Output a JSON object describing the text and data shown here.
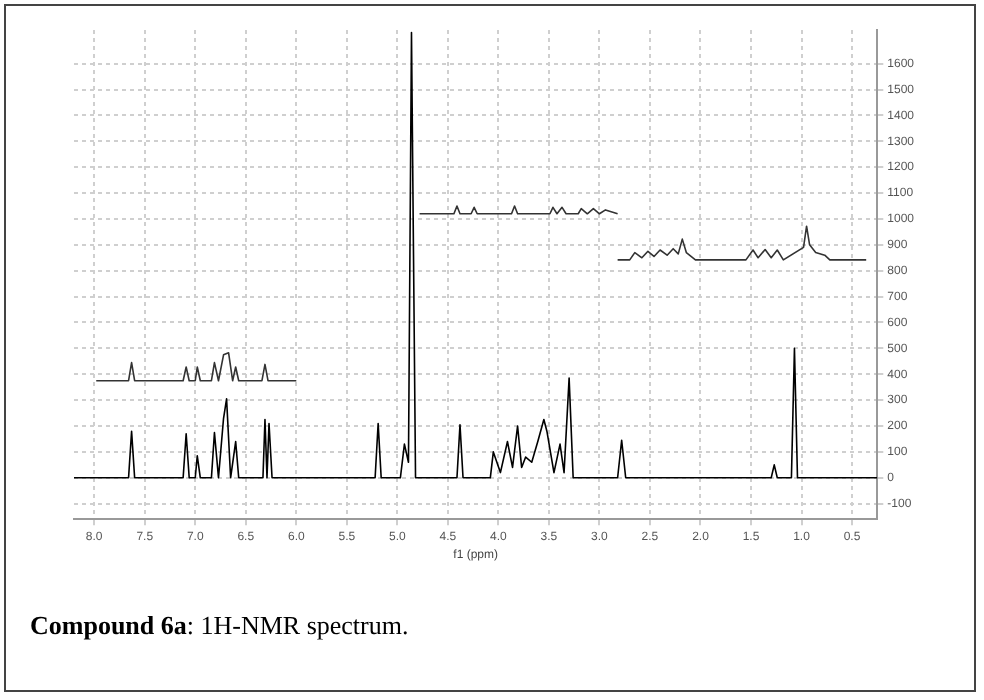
{
  "chart_data": {
    "type": "line",
    "xlabel": "f1 (ppm)",
    "xlim": [
      8.2,
      0.25
    ],
    "ylim": [
      -160,
      1730
    ],
    "xticks": [
      {
        "value": 8,
        "label": "8.0"
      },
      7.5,
      {
        "value": 7,
        "label": "7.0"
      },
      6.5,
      {
        "value": 6,
        "label": "6.0"
      },
      5.5,
      {
        "value": 5,
        "label": "5.0"
      },
      4.5,
      {
        "value": 4,
        "label": "4.0"
      },
      3.5,
      {
        "value": 3,
        "label": "3.0"
      },
      2.5,
      {
        "value": 2,
        "label": "2.0"
      },
      1.5,
      {
        "value": 1,
        "label": "1.0"
      },
      0.5
    ],
    "yticks": [
      -100,
      0,
      100,
      200,
      300,
      400,
      500,
      600,
      700,
      800,
      900,
      1000,
      1100,
      1200,
      1300,
      1400,
      1500,
      1600
    ],
    "grid": true,
    "legend": false,
    "marker": "none",
    "line_style": "solid",
    "series": [
      {
        "color": "#000000",
        "x": [
          8.2,
          7.66,
          7.63,
          7.6,
          7.12,
          7.09,
          7.06,
          7.0,
          6.98,
          6.95,
          6.84,
          6.81,
          6.77,
          6.72,
          6.69,
          6.65,
          6.6,
          6.57,
          6.33,
          6.31,
          6.29,
          6.27,
          6.24,
          5.22,
          5.19,
          5.16,
          4.97,
          4.93,
          4.89,
          4.86,
          4.82,
          4.41,
          4.38,
          4.35,
          4.08,
          4.05,
          3.98,
          3.91,
          3.86,
          3.81,
          3.77,
          3.73,
          3.67,
          3.61,
          3.55,
          3.52,
          3.45,
          3.39,
          3.35,
          3.3,
          3.26,
          2.82,
          2.78,
          2.74,
          1.3,
          1.27,
          1.24,
          1.1,
          1.07,
          1.04,
          0.25
        ],
        "values": [
          0,
          0,
          180,
          0,
          0,
          170,
          0,
          0,
          85,
          0,
          0,
          175,
          0,
          230,
          305,
          0,
          140,
          0,
          0,
          225,
          0,
          210,
          0,
          0,
          210,
          0,
          0,
          130,
          60,
          1720,
          0,
          0,
          205,
          0,
          0,
          100,
          20,
          140,
          40,
          200,
          40,
          80,
          60,
          140,
          225,
          180,
          20,
          130,
          20,
          385,
          0,
          0,
          145,
          0,
          0,
          50,
          0,
          0,
          500,
          0,
          0
        ]
      },
      {
        "color": "#333333",
        "x": [
          7.98,
          7.66,
          7.63,
          7.6,
          7.12,
          7.09,
          7.06,
          7.0,
          6.98,
          6.95,
          6.84,
          6.81,
          6.77,
          6.72,
          6.67,
          6.63,
          6.6,
          6.57,
          6.34,
          6.31,
          6.28,
          6.0
        ],
        "values": [
          375,
          375,
          445,
          375,
          375,
          428,
          375,
          375,
          428,
          375,
          375,
          445,
          375,
          475,
          483,
          375,
          428,
          375,
          375,
          438,
          375,
          375
        ]
      },
      {
        "color": "#333333",
        "x": [
          4.78,
          4.44,
          4.41,
          4.38,
          4.27,
          4.24,
          4.21,
          3.87,
          3.84,
          3.81,
          3.49,
          3.46,
          3.42,
          3.37,
          3.33,
          3.21,
          3.18,
          3.12,
          3.06,
          3.0,
          2.94,
          2.82
        ],
        "values": [
          1020,
          1020,
          1050,
          1020,
          1020,
          1045,
          1020,
          1020,
          1050,
          1020,
          1020,
          1045,
          1020,
          1045,
          1020,
          1020,
          1040,
          1020,
          1040,
          1020,
          1035,
          1020
        ]
      },
      {
        "color": "#333333",
        "x": [
          2.82,
          2.7,
          2.65,
          2.58,
          2.52,
          2.46,
          2.4,
          2.33,
          2.27,
          2.22,
          2.18,
          2.14,
          2.05,
          1.55,
          1.48,
          1.43,
          1.36,
          1.3,
          1.24,
          1.18,
          0.98,
          0.95,
          0.92,
          0.86,
          0.77,
          0.72,
          0.36
        ],
        "values": [
          842,
          842,
          870,
          850,
          875,
          855,
          880,
          860,
          885,
          865,
          922,
          870,
          842,
          842,
          880,
          850,
          882,
          850,
          880,
          842,
          890,
          972,
          900,
          870,
          860,
          842,
          842
        ]
      }
    ],
    "annotations": [
      "Compound 6a: 1H-NMR spectrum."
    ]
  }
}
